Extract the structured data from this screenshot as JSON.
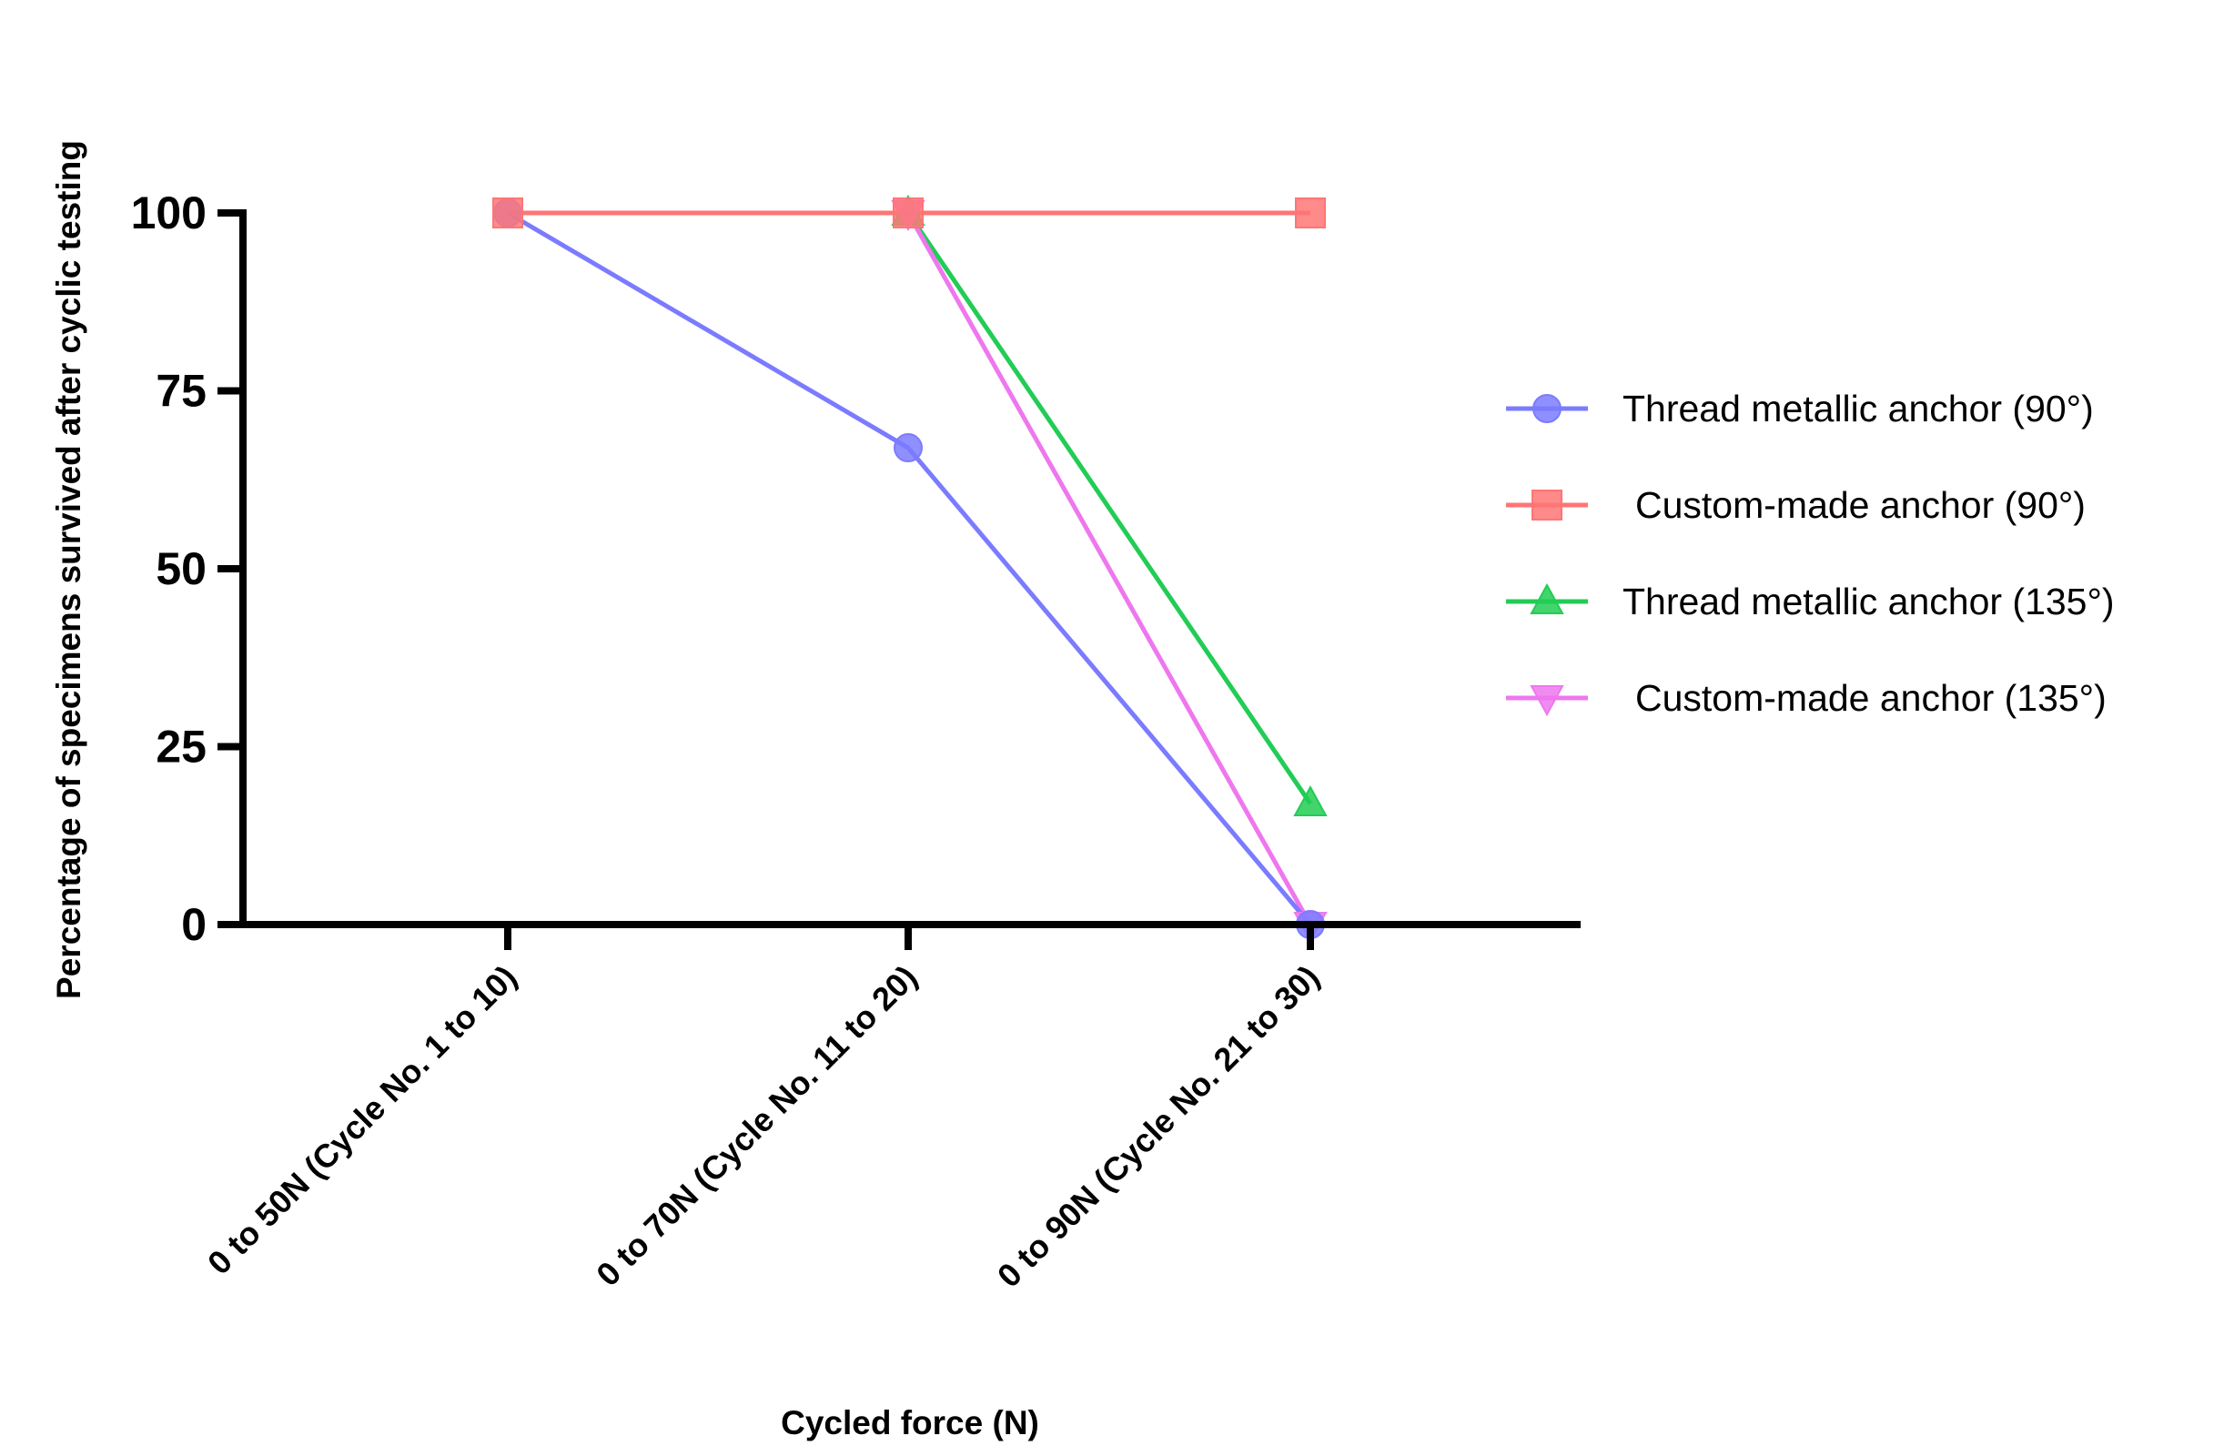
{
  "chart_data": {
    "type": "line",
    "title": "",
    "xlabel": "Cycled force (N)",
    "ylabel": "Percentage of specimens survived after cyclic testing",
    "categories": [
      "0 to 50N (Cycle No. 1 to 10)",
      "0 to 70N (Cycle No. 11 to 20)",
      "0 to 90N (Cycle No. 21 to 30)"
    ],
    "yticks": [
      0,
      25,
      50,
      75,
      100
    ],
    "ylim": [
      0,
      100
    ],
    "grid": false,
    "legend_position": "right",
    "series": [
      {
        "name": "Thread metallic anchor (90°)",
        "values": [
          100,
          67,
          0
        ],
        "color": "#7b7bff",
        "marker": "circle"
      },
      {
        "name": "Custom-made anchor (90°)",
        "values": [
          100,
          100,
          100
        ],
        "color": "#ff7575",
        "marker": "square"
      },
      {
        "name": "Thread metallic anchor (135°)",
        "values": [
          null,
          100,
          17
        ],
        "color": "#22cc55",
        "marker": "triangle-up"
      },
      {
        "name": "Custom-made anchor (135°)",
        "values": [
          null,
          100,
          0
        ],
        "color": "#ee77ee",
        "marker": "triangle-down"
      }
    ],
    "draw_order": [
      2,
      3,
      0,
      1
    ]
  }
}
